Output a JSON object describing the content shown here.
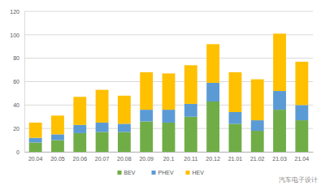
{
  "chart_data": {
    "type": "bar",
    "stacked": true,
    "grid": true,
    "legend": "bottom",
    "categories": [
      "20.04",
      "20.05",
      "20.06",
      "20.07",
      "20.08",
      "20.09",
      "20.1",
      "20.11",
      "20.12",
      "21.01",
      "21.02",
      "21.03",
      "21.04"
    ],
    "series": [
      {
        "name": "BEV",
        "color": "#70ad47",
        "values": [
          8,
          10,
          16,
          17,
          17,
          26,
          25,
          30,
          43,
          24,
          18,
          36,
          27
        ]
      },
      {
        "name": "PHEV",
        "color": "#5b9bd5",
        "values": [
          4,
          5,
          7,
          8,
          7,
          10,
          11,
          11,
          16,
          10,
          9,
          16,
          13
        ]
      },
      {
        "name": "HEV",
        "color": "#ffc000",
        "values": [
          13,
          16,
          24,
          28,
          24,
          32,
          31,
          33,
          33,
          34,
          35,
          49,
          37
        ]
      }
    ],
    "ylim": [
      0,
      120
    ],
    "yticks": [
      0,
      20,
      40,
      60,
      80,
      100,
      120
    ],
    "annotations": [
      "汽车电子设计"
    ]
  }
}
